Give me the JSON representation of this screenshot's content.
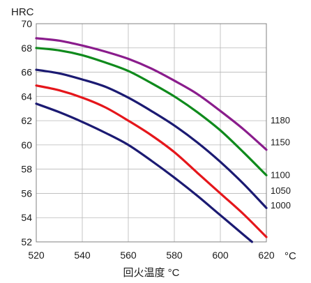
{
  "chart_data": {
    "type": "line",
    "title": "",
    "ylabel": "HRC",
    "xlabel": "回火温度 °C",
    "x_unit_label": "°C",
    "xlim": [
      520,
      620
    ],
    "ylim": [
      52,
      70
    ],
    "xticks": [
      520,
      540,
      560,
      580,
      600,
      620
    ],
    "yticks": [
      52,
      54,
      56,
      58,
      60,
      62,
      64,
      66,
      68,
      70
    ],
    "grid": true,
    "x": [
      520,
      530,
      540,
      550,
      560,
      570,
      580,
      590,
      600,
      610,
      620
    ],
    "series": [
      {
        "name": "1180",
        "color": "#8a1c8c",
        "y": [
          68.8,
          68.6,
          68.2,
          67.7,
          67.1,
          66.3,
          65.3,
          64.2,
          62.8,
          61.3,
          59.6
        ]
      },
      {
        "name": "1150",
        "color": "#0f8a1c",
        "y": [
          68.0,
          67.8,
          67.4,
          66.8,
          66.1,
          65.1,
          64.0,
          62.7,
          61.2,
          59.4,
          57.5
        ]
      },
      {
        "name": "1100",
        "color": "#1b1a72",
        "y": [
          66.2,
          65.9,
          65.4,
          64.8,
          63.9,
          62.8,
          61.6,
          60.2,
          58.6,
          56.8,
          54.8
        ]
      },
      {
        "name": "1050",
        "color": "#e5161b",
        "y": [
          64.9,
          64.5,
          63.9,
          63.1,
          62.0,
          60.8,
          59.4,
          57.7,
          56.0,
          54.3,
          52.4
        ]
      },
      {
        "name": "1000",
        "color": "#1b1a72",
        "y": [
          63.4,
          62.7,
          61.9,
          61.0,
          60.0,
          58.7,
          57.3,
          55.8,
          54.2,
          52.6,
          null
        ]
      }
    ],
    "series_labels": [
      {
        "text": "1180",
        "near_y": 62.0
      },
      {
        "text": "1150",
        "near_y": 60.2
      },
      {
        "text": "1100",
        "near_y": 57.5
      },
      {
        "text": "1050",
        "near_y": 56.2
      },
      {
        "text": "1000",
        "near_y": 55.0
      }
    ],
    "legend": "none (series labeled at right edge)"
  }
}
